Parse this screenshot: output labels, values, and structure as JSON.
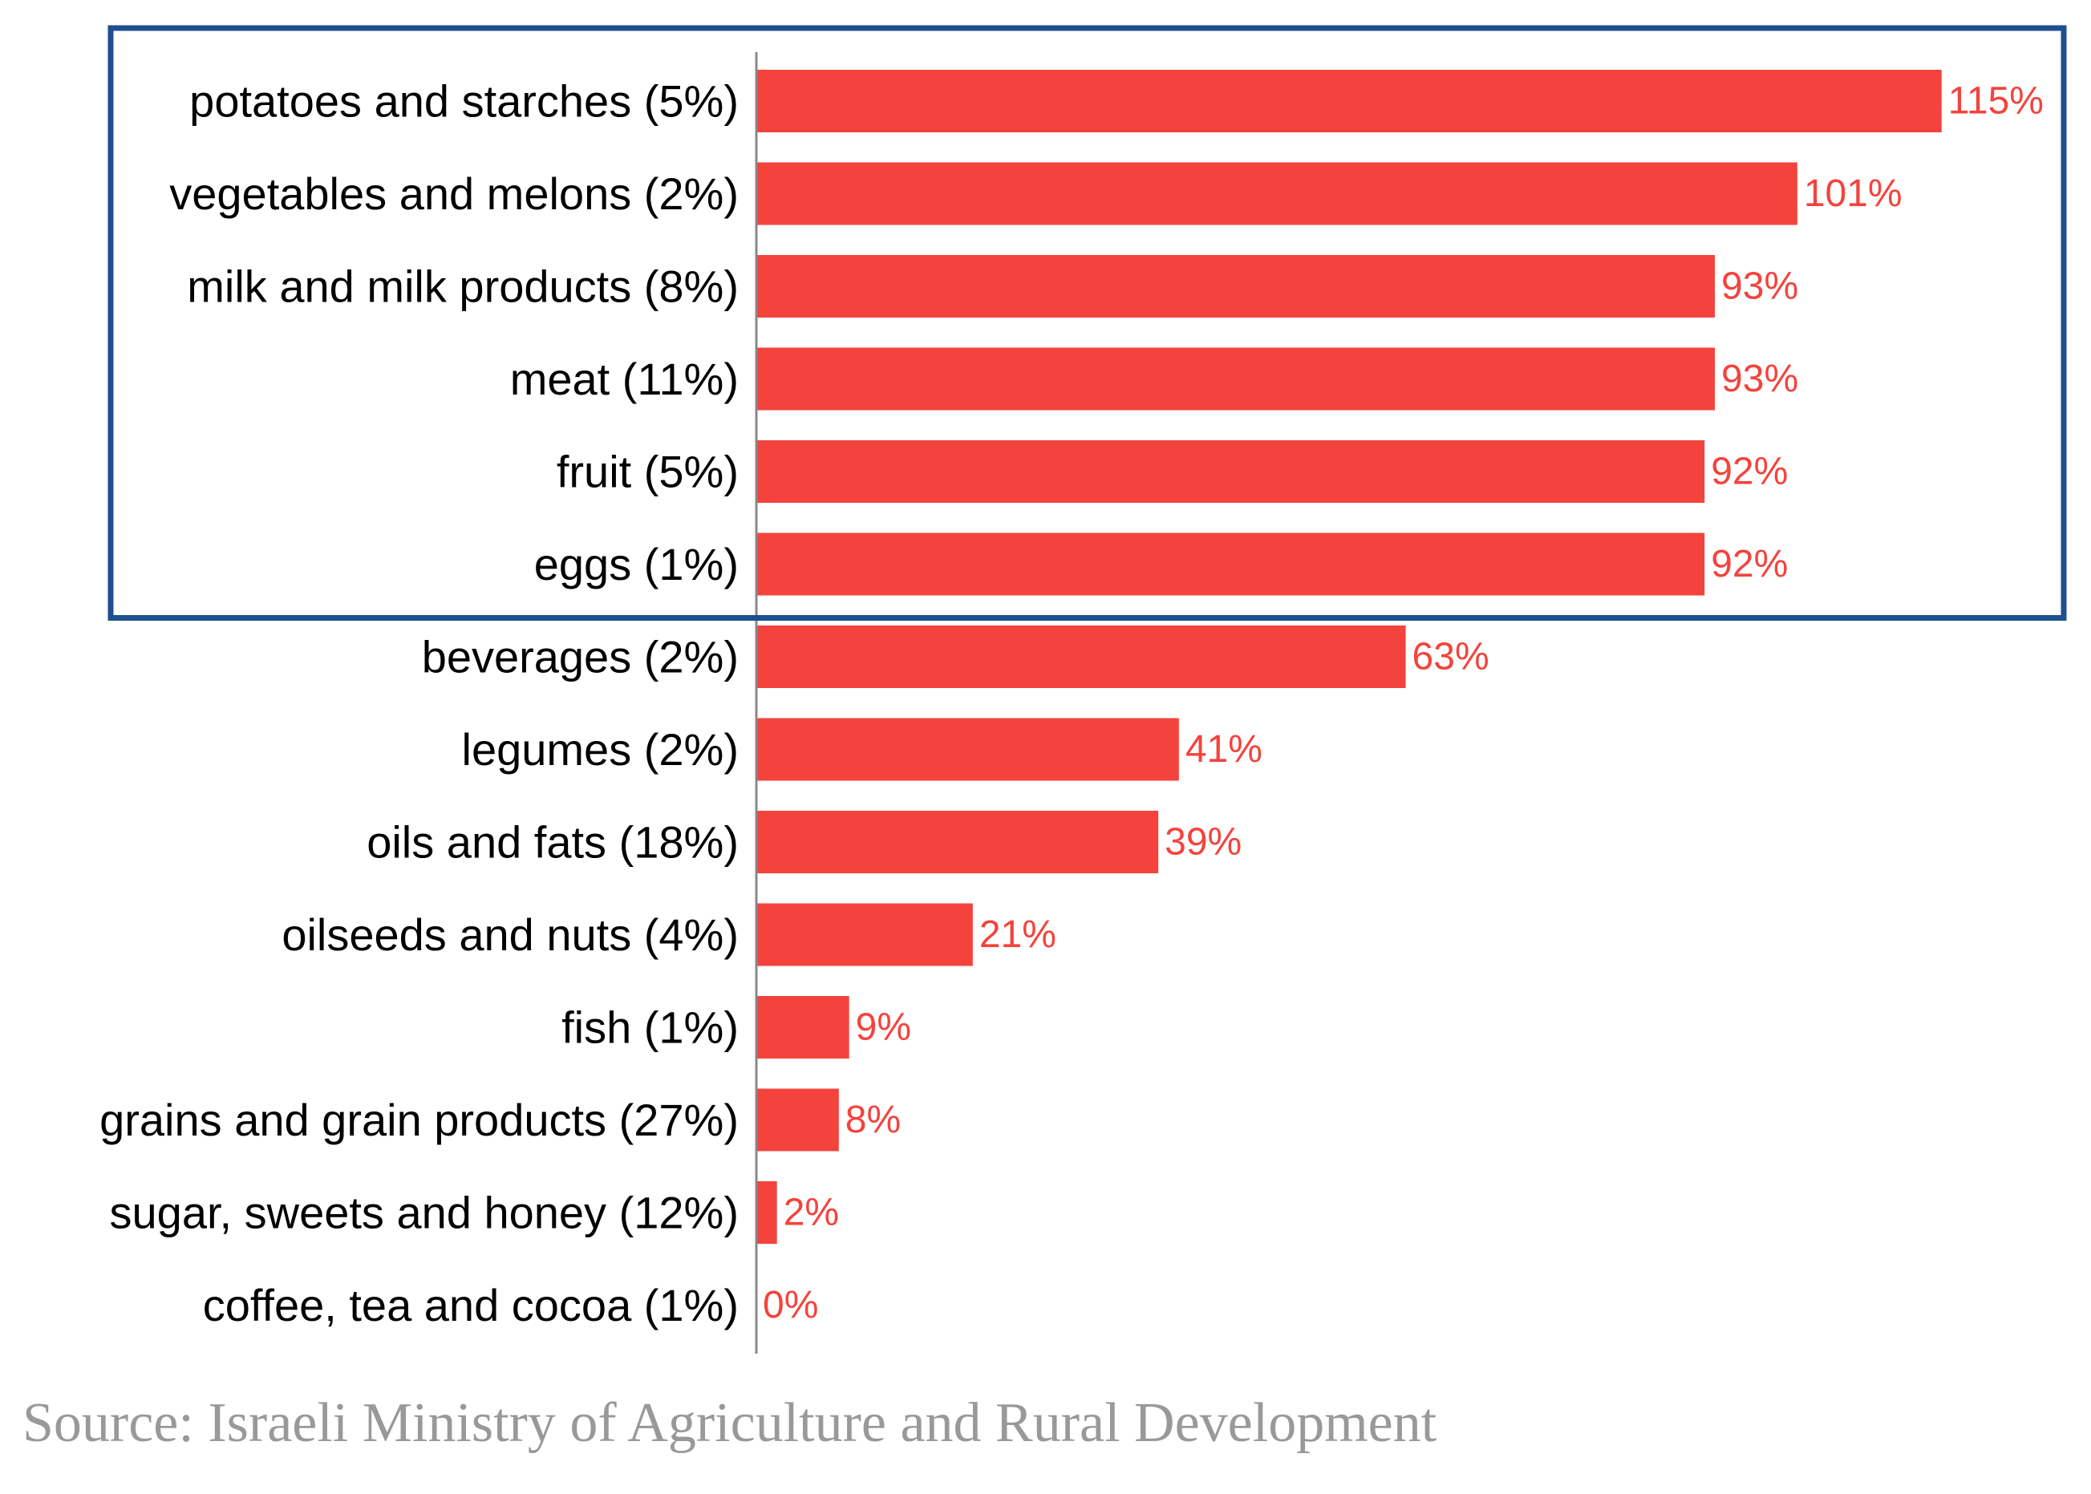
{
  "chart_data": {
    "type": "bar",
    "orientation": "horizontal",
    "categories": [
      "potatoes and starches (5%)",
      "vegetables and melons (2%)",
      "milk and milk products (8%)",
      "meat (11%)",
      "fruit (5%)",
      "eggs (1%)",
      "beverages (2%)",
      "legumes (2%)",
      "oils and fats (18%)",
      "oilseeds and nuts (4%)",
      "fish (1%)",
      "grains and grain products (27%)",
      "sugar, sweets and honey (12%)",
      "coffee, tea and cocoa (1%)"
    ],
    "values": [
      115,
      101,
      93,
      93,
      92,
      92,
      63,
      41,
      39,
      21,
      9,
      8,
      2,
      0
    ],
    "value_labels": [
      "115%",
      "101%",
      "93%",
      "93%",
      "92%",
      "92%",
      "63%",
      "41%",
      "39%",
      "21%",
      "9%",
      "8%",
      "2%",
      "0%"
    ],
    "xlim": [
      0,
      115
    ],
    "highlighted_categories_count": 6,
    "bar_color": "#f4433d",
    "label_color": "#f4433d",
    "highlight_box_color": "#1f4f8f",
    "axis_color": "#888888",
    "grid": false
  },
  "source": "Source: Israeli Ministry of Agriculture and Rural Development"
}
